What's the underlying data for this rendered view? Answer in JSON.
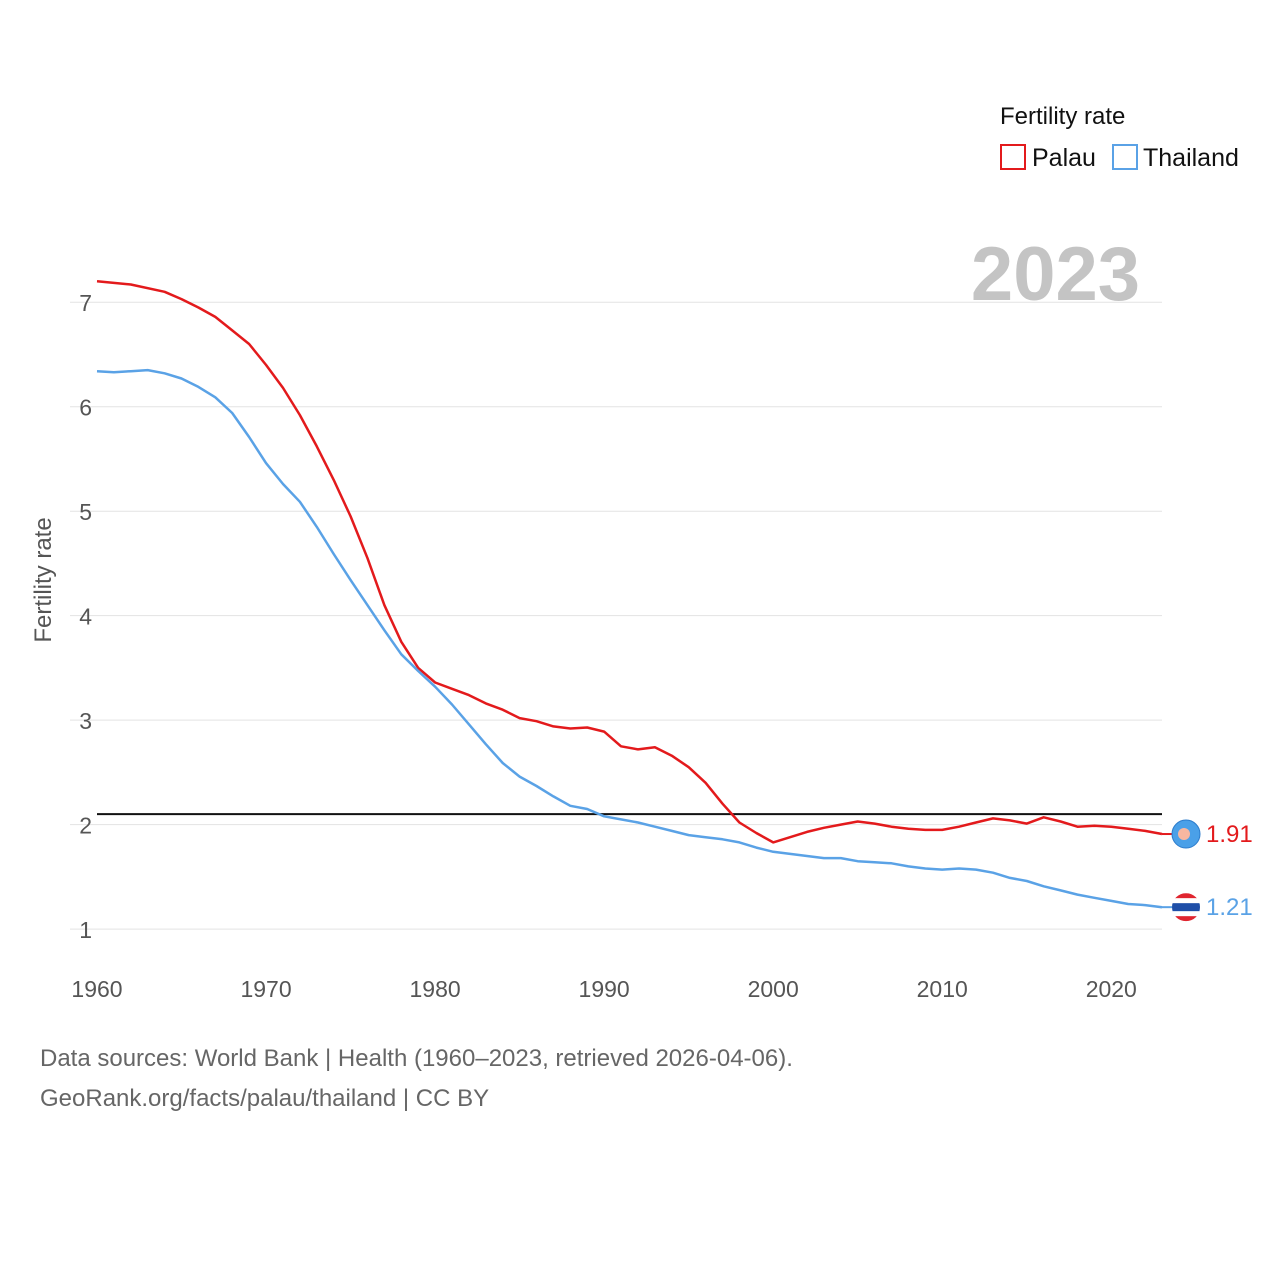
{
  "chart_data": {
    "type": "line",
    "title": "Fertility rate",
    "year_label": "2023",
    "ylabel": "Fertility rate",
    "xlabel": "",
    "xlim": [
      1960,
      2023
    ],
    "ylim": [
      0.8,
      7.5
    ],
    "x_ticks": [
      1960,
      1970,
      1980,
      1990,
      2000,
      2010,
      2020
    ],
    "y_ticks": [
      1,
      2,
      3,
      4,
      5,
      6,
      7
    ],
    "reference_line": {
      "value": 2.1,
      "color": "#111111"
    },
    "legend_position": "top-right",
    "series": [
      {
        "name": "Palau",
        "color": "#e31a1c",
        "end_label": "1.91",
        "points": [
          [
            1960,
            7.2
          ],
          [
            1962,
            7.17
          ],
          [
            1964,
            7.1
          ],
          [
            1965,
            7.03
          ],
          [
            1966,
            6.95
          ],
          [
            1967,
            6.86
          ],
          [
            1968,
            6.73
          ],
          [
            1969,
            6.6
          ],
          [
            1970,
            6.4
          ],
          [
            1971,
            6.18
          ],
          [
            1972,
            5.92
          ],
          [
            1973,
            5.62
          ],
          [
            1974,
            5.3
          ],
          [
            1975,
            4.95
          ],
          [
            1976,
            4.55
          ],
          [
            1977,
            4.1
          ],
          [
            1978,
            3.75
          ],
          [
            1979,
            3.5
          ],
          [
            1980,
            3.36
          ],
          [
            1981,
            3.3
          ],
          [
            1982,
            3.24
          ],
          [
            1983,
            3.16
          ],
          [
            1984,
            3.1
          ],
          [
            1985,
            3.02
          ],
          [
            1986,
            2.99
          ],
          [
            1987,
            2.94
          ],
          [
            1988,
            2.92
          ],
          [
            1989,
            2.93
          ],
          [
            1990,
            2.89
          ],
          [
            1991,
            2.75
          ],
          [
            1992,
            2.72
          ],
          [
            1993,
            2.74
          ],
          [
            1994,
            2.66
          ],
          [
            1995,
            2.55
          ],
          [
            1996,
            2.4
          ],
          [
            1997,
            2.2
          ],
          [
            1998,
            2.02
          ],
          [
            1999,
            1.92
          ],
          [
            2000,
            1.83
          ],
          [
            2001,
            1.88
          ],
          [
            2002,
            1.93
          ],
          [
            2003,
            1.97
          ],
          [
            2004,
            2.0
          ],
          [
            2005,
            2.03
          ],
          [
            2006,
            2.01
          ],
          [
            2007,
            1.98
          ],
          [
            2008,
            1.96
          ],
          [
            2009,
            1.95
          ],
          [
            2010,
            1.95
          ],
          [
            2011,
            1.98
          ],
          [
            2012,
            2.02
          ],
          [
            2013,
            2.06
          ],
          [
            2014,
            2.04
          ],
          [
            2015,
            2.01
          ],
          [
            2016,
            2.07
          ],
          [
            2017,
            2.03
          ],
          [
            2018,
            1.98
          ],
          [
            2019,
            1.99
          ],
          [
            2020,
            1.98
          ],
          [
            2021,
            1.96
          ],
          [
            2022,
            1.94
          ],
          [
            2023,
            1.91
          ]
        ]
      },
      {
        "name": "Thailand",
        "color": "#5aa2e6",
        "end_label": "1.21",
        "points": [
          [
            1960,
            6.34
          ],
          [
            1961,
            6.33
          ],
          [
            1962,
            6.34
          ],
          [
            1963,
            6.35
          ],
          [
            1964,
            6.32
          ],
          [
            1965,
            6.27
          ],
          [
            1966,
            6.19
          ],
          [
            1967,
            6.09
          ],
          [
            1968,
            5.94
          ],
          [
            1969,
            5.71
          ],
          [
            1970,
            5.46
          ],
          [
            1971,
            5.26
          ],
          [
            1972,
            5.09
          ],
          [
            1973,
            4.85
          ],
          [
            1974,
            4.59
          ],
          [
            1975,
            4.34
          ],
          [
            1976,
            4.1
          ],
          [
            1977,
            3.86
          ],
          [
            1978,
            3.63
          ],
          [
            1979,
            3.47
          ],
          [
            1980,
            3.32
          ],
          [
            1981,
            3.15
          ],
          [
            1982,
            2.96
          ],
          [
            1983,
            2.77
          ],
          [
            1984,
            2.59
          ],
          [
            1985,
            2.46
          ],
          [
            1986,
            2.37
          ],
          [
            1987,
            2.27
          ],
          [
            1988,
            2.18
          ],
          [
            1989,
            2.15
          ],
          [
            1990,
            2.08
          ],
          [
            1991,
            2.05
          ],
          [
            1992,
            2.02
          ],
          [
            1993,
            1.98
          ],
          [
            1994,
            1.94
          ],
          [
            1995,
            1.9
          ],
          [
            1996,
            1.88
          ],
          [
            1997,
            1.86
          ],
          [
            1998,
            1.83
          ],
          [
            1999,
            1.78
          ],
          [
            2000,
            1.74
          ],
          [
            2001,
            1.72
          ],
          [
            2002,
            1.7
          ],
          [
            2003,
            1.68
          ],
          [
            2004,
            1.68
          ],
          [
            2005,
            1.65
          ],
          [
            2006,
            1.64
          ],
          [
            2007,
            1.63
          ],
          [
            2008,
            1.6
          ],
          [
            2009,
            1.58
          ],
          [
            2010,
            1.57
          ],
          [
            2011,
            1.58
          ],
          [
            2012,
            1.57
          ],
          [
            2013,
            1.54
          ],
          [
            2014,
            1.49
          ],
          [
            2015,
            1.46
          ],
          [
            2016,
            1.41
          ],
          [
            2017,
            1.37
          ],
          [
            2018,
            1.33
          ],
          [
            2019,
            1.3
          ],
          [
            2020,
            1.27
          ],
          [
            2021,
            1.24
          ],
          [
            2022,
            1.23
          ],
          [
            2023,
            1.21
          ]
        ]
      }
    ]
  },
  "footer": {
    "sources": "Data sources: World Bank | Health (1960–2023, retrieved 2026-04-06).",
    "attribution": "GeoRank.org/facts/palau/thailand | CC BY"
  }
}
